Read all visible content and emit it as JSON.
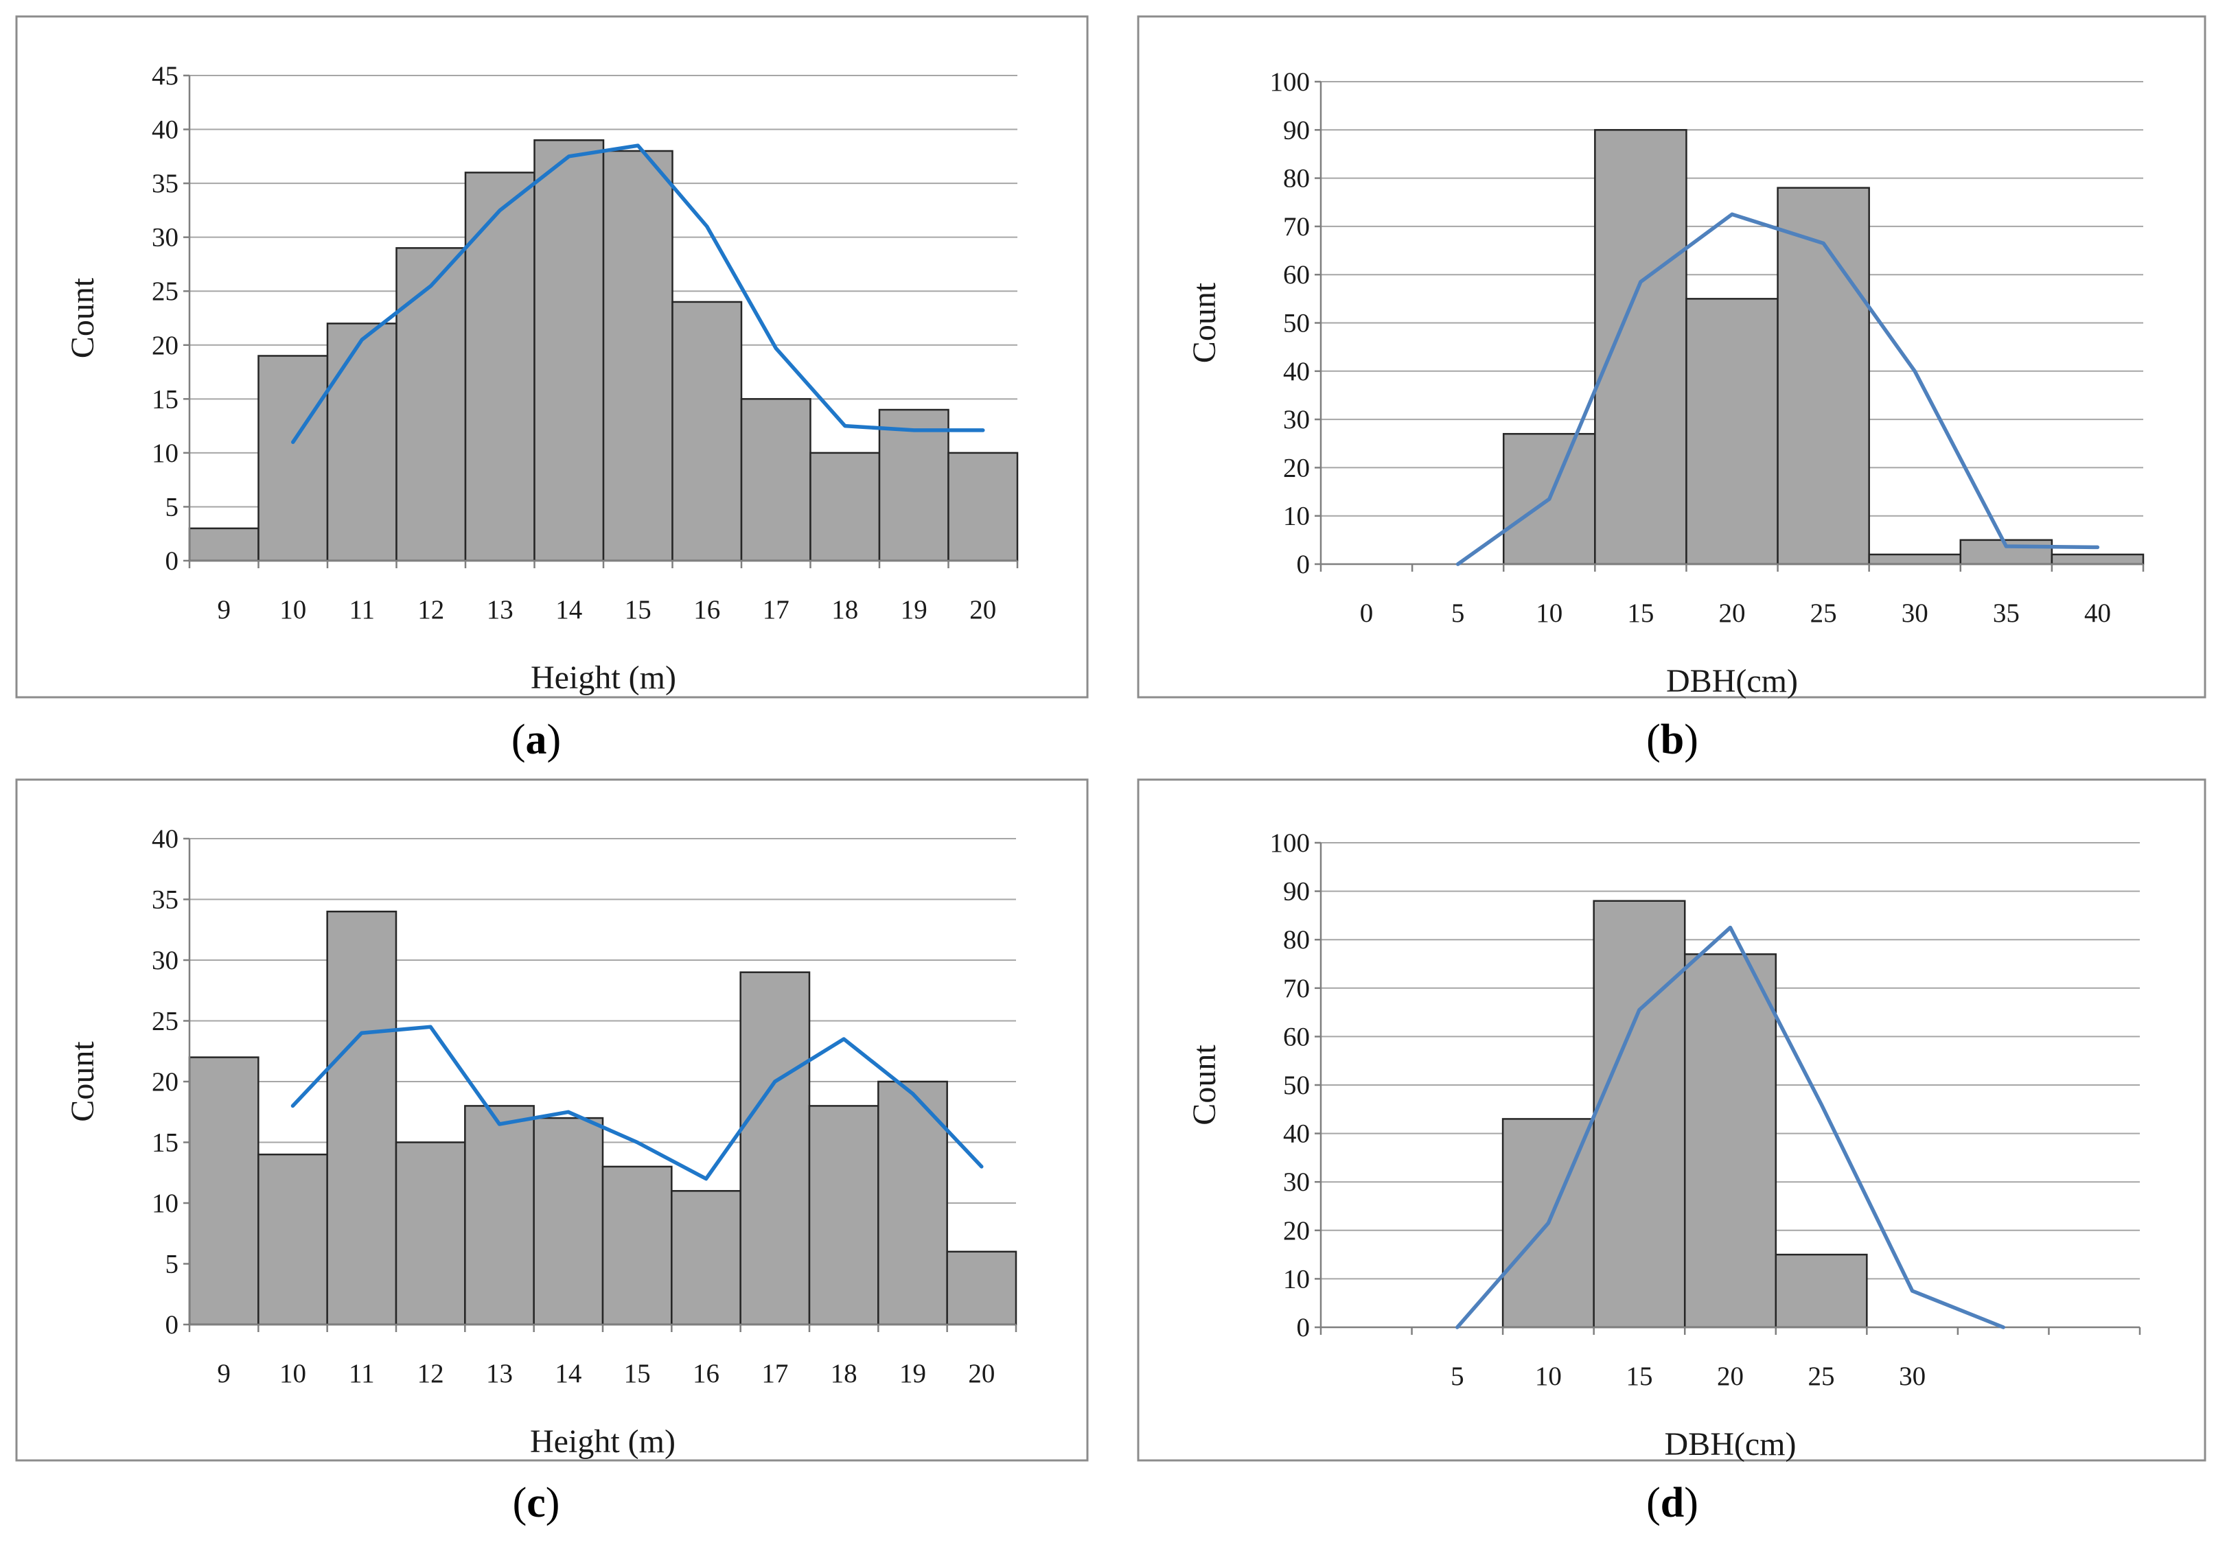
{
  "colors": {
    "bar_fill": "#a6a6a6",
    "bar_stroke": "#262626",
    "line_dark_blue": "#1f77c9",
    "line_light_blue": "#4f81bd"
  },
  "chart_data": [
    {
      "id": "a",
      "type": "bar",
      "label_paren_open": "(",
      "label_letter": "a",
      "label_paren_close": ")",
      "xlabel": "Height (m)",
      "ylabel": "Count",
      "ylim": [
        0,
        45
      ],
      "yticks": [
        0,
        5,
        10,
        15,
        20,
        25,
        30,
        35,
        40,
        45
      ],
      "categories": [
        "9",
        "10",
        "11",
        "12",
        "13",
        "14",
        "15",
        "16",
        "17",
        "18",
        "19",
        "20"
      ],
      "values": [
        3,
        19,
        22,
        29,
        36,
        39,
        38,
        24,
        15,
        10,
        14,
        10
      ],
      "line": {
        "color": "#1f77c9",
        "points": [
          [
            1.5,
            11
          ],
          [
            2.5,
            20.5
          ],
          [
            3.5,
            25.5
          ],
          [
            4.5,
            32.5
          ],
          [
            5.5,
            37.5
          ],
          [
            6.5,
            38.5
          ],
          [
            7.5,
            31
          ],
          [
            8.5,
            19.7
          ],
          [
            9.5,
            12.5
          ],
          [
            10.5,
            12.1
          ],
          [
            11.5,
            12.1
          ]
        ]
      },
      "grid": true
    },
    {
      "id": "b",
      "type": "bar",
      "label_paren_open": "(",
      "label_letter": "b",
      "label_paren_close": ")",
      "xlabel": "DBH(cm)",
      "ylabel": "Count",
      "ylim": [
        0,
        100
      ],
      "yticks": [
        0,
        10,
        20,
        30,
        40,
        50,
        60,
        70,
        80,
        90,
        100
      ],
      "categories": [
        "0",
        "5",
        "10",
        "15",
        "20",
        "25",
        "30",
        "35",
        "40"
      ],
      "values": [
        0,
        0,
        27,
        90,
        55,
        78,
        2,
        5,
        2
      ],
      "line": {
        "color": "#4f81bd",
        "points": [
          [
            1.5,
            0
          ],
          [
            2.5,
            13.5
          ],
          [
            3.5,
            58.5
          ],
          [
            4.5,
            72.5
          ],
          [
            5.5,
            66.5
          ],
          [
            6.5,
            40
          ],
          [
            7.5,
            3.7
          ],
          [
            8.5,
            3.5
          ]
        ]
      },
      "grid": true
    },
    {
      "id": "c",
      "type": "bar",
      "label_paren_open": "(",
      "label_letter": "c",
      "label_paren_close": ")",
      "xlabel": "Height (m)",
      "ylabel": "Count",
      "ylim": [
        0,
        40
      ],
      "yticks": [
        0,
        5,
        10,
        15,
        20,
        25,
        30,
        35,
        40
      ],
      "categories": [
        "9",
        "10",
        "11",
        "12",
        "13",
        "14",
        "15",
        "16",
        "17",
        "18",
        "19",
        "20"
      ],
      "values": [
        22,
        14,
        34,
        15,
        18,
        17,
        13,
        11,
        29,
        18,
        20,
        6
      ],
      "line": {
        "color": "#1f77c9",
        "points": [
          [
            1.5,
            18
          ],
          [
            2.5,
            24
          ],
          [
            3.5,
            24.5
          ],
          [
            4.5,
            16.5
          ],
          [
            5.5,
            17.5
          ],
          [
            6.5,
            15
          ],
          [
            7.5,
            12
          ],
          [
            8.5,
            20
          ],
          [
            9.5,
            23.5
          ],
          [
            10.5,
            19
          ],
          [
            11.5,
            13
          ]
        ]
      },
      "grid": true
    },
    {
      "id": "d",
      "type": "bar",
      "label_paren_open": "(",
      "label_letter": "d",
      "label_paren_close": ")",
      "xlabel": "DBH(cm)",
      "ylabel": "Count",
      "ylim": [
        0,
        100
      ],
      "yticks": [
        0,
        10,
        20,
        30,
        40,
        50,
        60,
        70,
        80,
        90,
        100
      ],
      "categories": [
        "",
        "5",
        "10",
        "15",
        "20",
        "25",
        "30",
        "",
        ""
      ],
      "values": [
        0,
        0,
        43,
        88,
        77,
        15,
        0,
        0,
        0
      ],
      "line": {
        "color": "#4f81bd",
        "points": [
          [
            1.5,
            0
          ],
          [
            2.5,
            21.5
          ],
          [
            3.5,
            65.5
          ],
          [
            4.5,
            82.5
          ],
          [
            5.5,
            46
          ],
          [
            6.5,
            7.5
          ],
          [
            7.5,
            0
          ]
        ]
      },
      "grid": true
    }
  ]
}
